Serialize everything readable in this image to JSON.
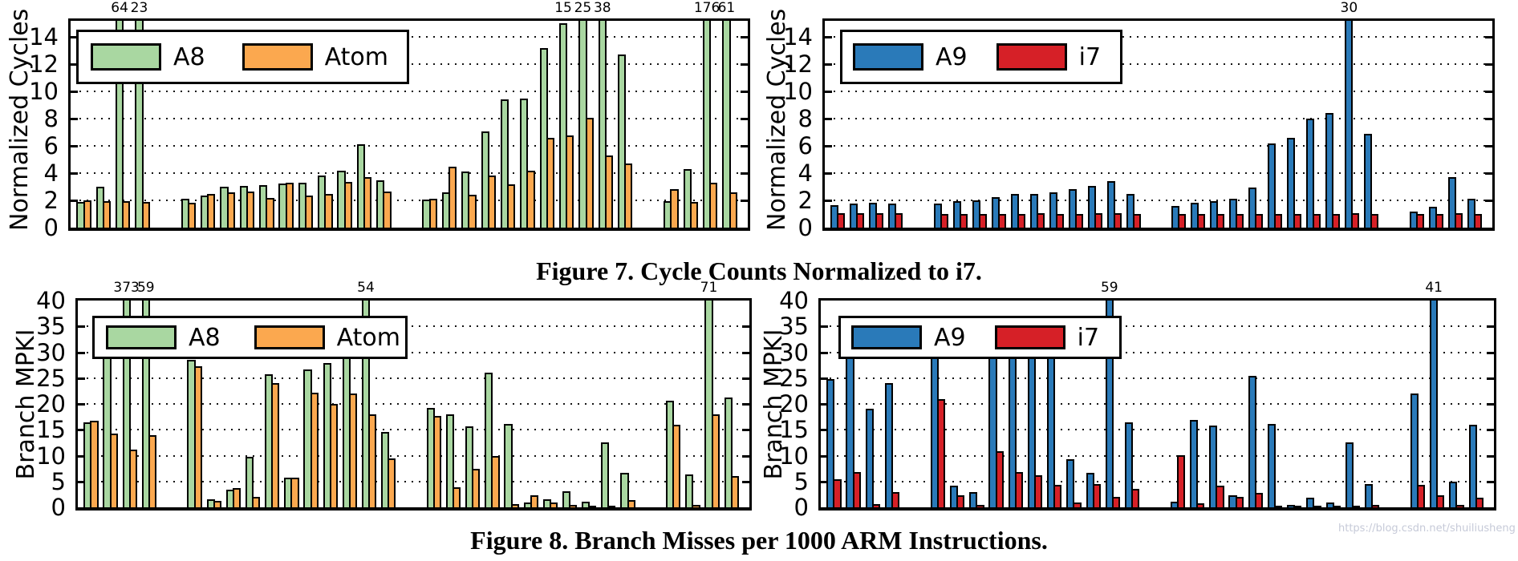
{
  "page": {
    "watermark": "https://blog.csdn.net/shuiliusheng"
  },
  "figure7": {
    "caption": "Figure 7. Cycle Counts Normalized to i7."
  },
  "figure8": {
    "caption": "Figure 8. Branch Misses per 1000 ARM Instructions."
  },
  "colors": {
    "A8": "#a9d7a1",
    "Atom": "#fba84f",
    "A9": "#2a7ab9",
    "i7": "#d62027",
    "edge": "#000000",
    "caption": "#000000",
    "watermark": "#c6cad8"
  },
  "chart_data": [
    {
      "type": "bar",
      "position": "top-left",
      "ylabel": "Normalized Cycles",
      "ylim": [
        0,
        15.2
      ],
      "yticks": [
        0,
        2,
        4,
        6,
        8,
        10,
        12,
        14
      ],
      "grid": "dotted-horizontal",
      "legend_position": "upper-left-inside",
      "clusters": [
        4,
        11,
        11,
        4
      ],
      "legend": [
        {
          "label": "A8",
          "color": "#a9d7a1"
        },
        {
          "label": "Atom",
          "color": "#fba84f"
        }
      ],
      "series": [
        {
          "name": "A8",
          "color": "#a9d7a1",
          "values": [
            1.9,
            3.0,
            64,
            23,
            2.1,
            2.35,
            3.0,
            3.05,
            3.1,
            3.25,
            3.3,
            3.85,
            4.2,
            6.1,
            3.45,
            2.05,
            2.6,
            4.15,
            7.1,
            9.4,
            9.5,
            13.2,
            15,
            25,
            38,
            12.7,
            1.95,
            4.3,
            176,
            61
          ]
        },
        {
          "name": "Atom",
          "color": "#fba84f",
          "values": [
            2.0,
            1.95,
            1.95,
            1.9,
            1.85,
            2.5,
            2.6,
            2.65,
            2.2,
            3.3,
            2.35,
            2.5,
            3.35,
            3.7,
            2.65,
            2.15,
            4.5,
            2.4,
            3.85,
            3.2,
            4.2,
            6.6,
            6.8,
            8.1,
            5.3,
            4.7,
            2.85,
            1.9,
            3.3,
            2.6
          ]
        }
      ],
      "annotations": [
        {
          "pair": 2,
          "label": "64"
        },
        {
          "pair": 3,
          "label": "23"
        },
        {
          "pair": 22,
          "label": "15"
        },
        {
          "pair": 23,
          "label": "25"
        },
        {
          "pair": 24,
          "label": "38"
        },
        {
          "pair": 28,
          "label": "176"
        },
        {
          "pair": 29,
          "label": "61"
        }
      ]
    },
    {
      "type": "bar",
      "position": "top-right",
      "ylabel": "Normalized Cycles",
      "ylim": [
        0,
        15.2
      ],
      "yticks": [
        0,
        2,
        4,
        6,
        8,
        10,
        12,
        14
      ],
      "grid": "dotted-horizontal",
      "legend_position": "upper-left-inside",
      "clusters": [
        4,
        11,
        11,
        4
      ],
      "legend": [
        {
          "label": "A9",
          "color": "#2a7ab9"
        },
        {
          "label": "i7",
          "color": "#d62027"
        }
      ],
      "series": [
        {
          "name": "A9",
          "color": "#2a7ab9",
          "values": [
            1.65,
            1.75,
            1.8,
            1.75,
            1.75,
            1.95,
            2.0,
            2.25,
            2.45,
            2.5,
            2.6,
            2.8,
            3.05,
            3.4,
            2.45,
            1.6,
            1.85,
            1.95,
            2.1,
            2.95,
            6.2,
            6.6,
            8.0,
            8.4,
            30,
            6.9,
            1.15,
            1.55,
            3.7,
            2.15
          ]
        },
        {
          "name": "i7",
          "color": "#d62027",
          "values": [
            1.05,
            1.05,
            1.05,
            1.05,
            1.0,
            1.0,
            1.0,
            1.0,
            1.0,
            1.05,
            1.0,
            1.0,
            1.05,
            1.05,
            1.0,
            1.0,
            1.0,
            1.0,
            1.0,
            1.0,
            1.0,
            1.0,
            1.0,
            1.0,
            1.05,
            1.0,
            1.0,
            1.0,
            1.05,
            1.0
          ]
        }
      ],
      "annotations": [
        {
          "pair": 24,
          "label": "30"
        }
      ]
    },
    {
      "type": "bar",
      "position": "bottom-left",
      "ylabel": "Branch MPKI",
      "ylim": [
        0,
        40
      ],
      "yticks": [
        0,
        5,
        10,
        15,
        20,
        25,
        30,
        35,
        40
      ],
      "grid": "dotted-horizontal",
      "legend_position": "upper-left-inside",
      "clusters": [
        4,
        11,
        11,
        4
      ],
      "legend": [
        {
          "label": "A8",
          "color": "#a9d7a1"
        },
        {
          "label": "Atom",
          "color": "#fba84f"
        }
      ],
      "series": [
        {
          "name": "A8",
          "color": "#a9d7a1",
          "values": [
            16.5,
            36,
            373,
            59,
            28.5,
            1.5,
            3.4,
            9.7,
            25.8,
            5.8,
            26.6,
            27.9,
            37,
            54,
            14.5,
            19.2,
            18.0,
            15.6,
            26.0,
            16.2,
            0.9,
            1.6,
            3.1,
            1.1,
            12.5,
            6.6,
            20.6,
            6.4,
            71,
            21.2
          ]
        },
        {
          "name": "Atom",
          "color": "#fba84f",
          "values": [
            16.8,
            14.3,
            11.2,
            14.0,
            27.3,
            1.3,
            3.8,
            2.0,
            24.0,
            5.8,
            22.1,
            20.0,
            22.0,
            18.0,
            9.5,
            17.7,
            3.9,
            7.5,
            10.0,
            0.7,
            2.4,
            1.0,
            0.4,
            0.3,
            0.2,
            1.4,
            15.9,
            0.4,
            18.0,
            6.0
          ]
        }
      ],
      "annotations": [
        {
          "pair": 2,
          "label": "373"
        },
        {
          "pair": 3,
          "label": "59"
        },
        {
          "pair": 13,
          "label": "54"
        },
        {
          "pair": 28,
          "label": "71"
        }
      ]
    },
    {
      "type": "bar",
      "position": "bottom-right",
      "ylabel": "Branch MPKI",
      "ylim": [
        0,
        40
      ],
      "yticks": [
        0,
        5,
        10,
        15,
        20,
        25,
        30,
        35,
        40
      ],
      "grid": "dotted-horizontal",
      "legend_position": "upper-left-inside",
      "clusters": [
        4,
        11,
        11,
        4
      ],
      "legend": [
        {
          "label": "A9",
          "color": "#2a7ab9"
        },
        {
          "label": "i7",
          "color": "#d62027"
        }
      ],
      "series": [
        {
          "name": "A9",
          "color": "#2a7ab9",
          "values": [
            24.8,
            33,
            19.1,
            24.0,
            31,
            4.2,
            2.9,
            30,
            29,
            31,
            30,
            9.3,
            6.6,
            59,
            16.5,
            1.1,
            16.9,
            15.8,
            2.4,
            25.4,
            16.2,
            0.4,
            1.9,
            1.0,
            12.5,
            4.5,
            22.0,
            41,
            4.9,
            16.0
          ]
        },
        {
          "name": "i7",
          "color": "#d62027",
          "values": [
            5.5,
            6.8,
            0.6,
            3.0,
            20.9,
            2.4,
            0.5,
            10.8,
            6.9,
            6.2,
            4.3,
            0.9,
            4.5,
            2.0,
            3.5,
            10.1,
            0.8,
            4.2,
            2.0,
            2.8,
            0.3,
            0.3,
            0.2,
            0.2,
            0.2,
            0.4,
            4.3,
            2.3,
            0.5,
            1.9
          ]
        }
      ],
      "annotations": [
        {
          "pair": 13,
          "label": "59"
        },
        {
          "pair": 27,
          "label": "41"
        }
      ]
    }
  ]
}
